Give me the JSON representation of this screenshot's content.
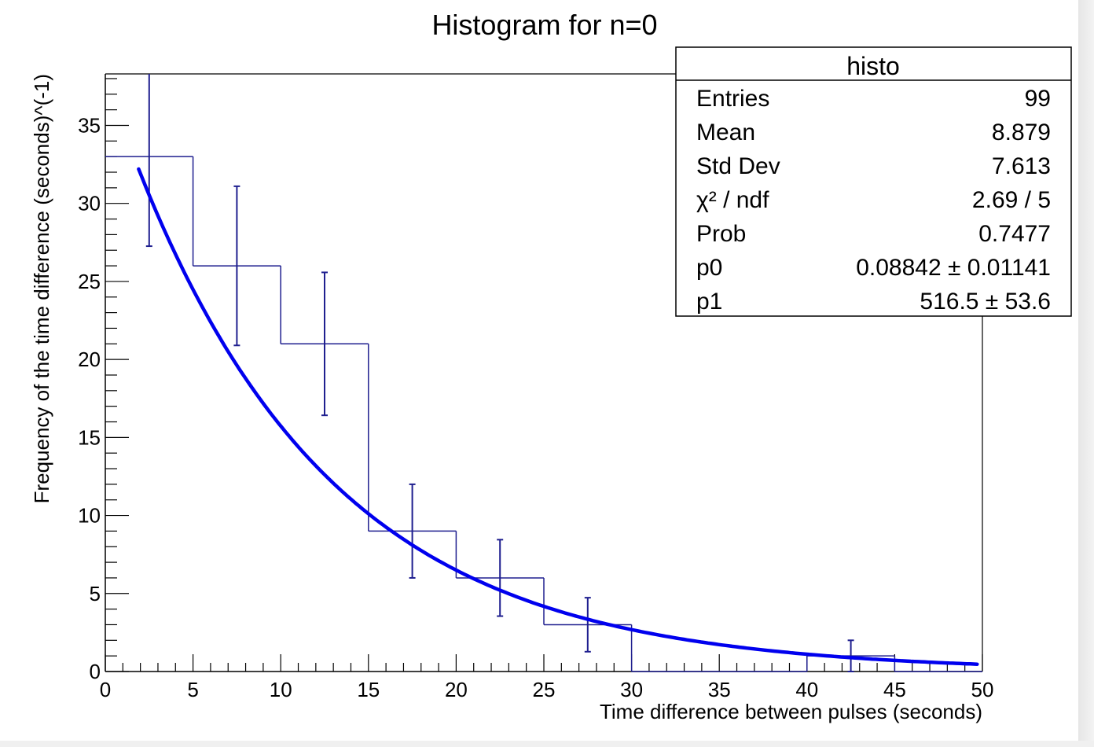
{
  "chart_data": {
    "type": "bar",
    "title": "Histogram for n=0",
    "xlabel": "Time difference between pulses (seconds)",
    "ylabel": "Frequency of the time difference (seconds)^(-1)",
    "xlim": [
      0,
      50
    ],
    "ylim": [
      0,
      38.3
    ],
    "grid": false,
    "x_ticks": [
      0,
      5,
      10,
      15,
      20,
      25,
      30,
      35,
      40,
      45,
      50
    ],
    "y_ticks": [
      0,
      5,
      10,
      15,
      20,
      25,
      30,
      35
    ],
    "bin_width": 5,
    "bins": [
      {
        "x_low": 0,
        "x_high": 5,
        "center": 2.5,
        "value": 33,
        "error": 5.74
      },
      {
        "x_low": 5,
        "x_high": 10,
        "center": 7.5,
        "value": 26,
        "error": 5.1
      },
      {
        "x_low": 10,
        "x_high": 15,
        "center": 12.5,
        "value": 21,
        "error": 4.58
      },
      {
        "x_low": 15,
        "x_high": 20,
        "center": 17.5,
        "value": 9,
        "error": 3.0
      },
      {
        "x_low": 20,
        "x_high": 25,
        "center": 22.5,
        "value": 6,
        "error": 2.45
      },
      {
        "x_low": 25,
        "x_high": 30,
        "center": 27.5,
        "value": 3,
        "error": 1.73
      },
      {
        "x_low": 30,
        "x_high": 35,
        "center": 32.5,
        "value": 0,
        "error": 0
      },
      {
        "x_low": 35,
        "x_high": 40,
        "center": 37.5,
        "value": 0,
        "error": 0
      },
      {
        "x_low": 40,
        "x_high": 45,
        "center": 42.5,
        "value": 1,
        "error": 1.0
      },
      {
        "x_low": 45,
        "x_high": 50,
        "center": 47.5,
        "value": 0,
        "error": 0
      }
    ],
    "fit": {
      "function": "exponential",
      "parameters": {
        "p0": 0.08842,
        "p1": 516.5
      },
      "x_range": [
        1.9,
        49.7
      ]
    },
    "colors": {
      "histogram": "#1f1f8f",
      "fit": "#0000ee",
      "axis": "#000000"
    },
    "legend_position": "top-right"
  },
  "stats_box": {
    "title": "histo",
    "rows": [
      {
        "label": "Entries",
        "value": "99"
      },
      {
        "label": "Mean",
        "value": "8.879"
      },
      {
        "label": "Std Dev",
        "value": "7.613"
      },
      {
        "label": "χ² / ndf",
        "value": "2.69 / 5"
      },
      {
        "label": "Prob",
        "value": "0.7477"
      },
      {
        "label": "p0",
        "value": "0.08842 ± 0.01141"
      },
      {
        "label": "p1",
        "value": "516.5 ± 53.6"
      }
    ]
  }
}
